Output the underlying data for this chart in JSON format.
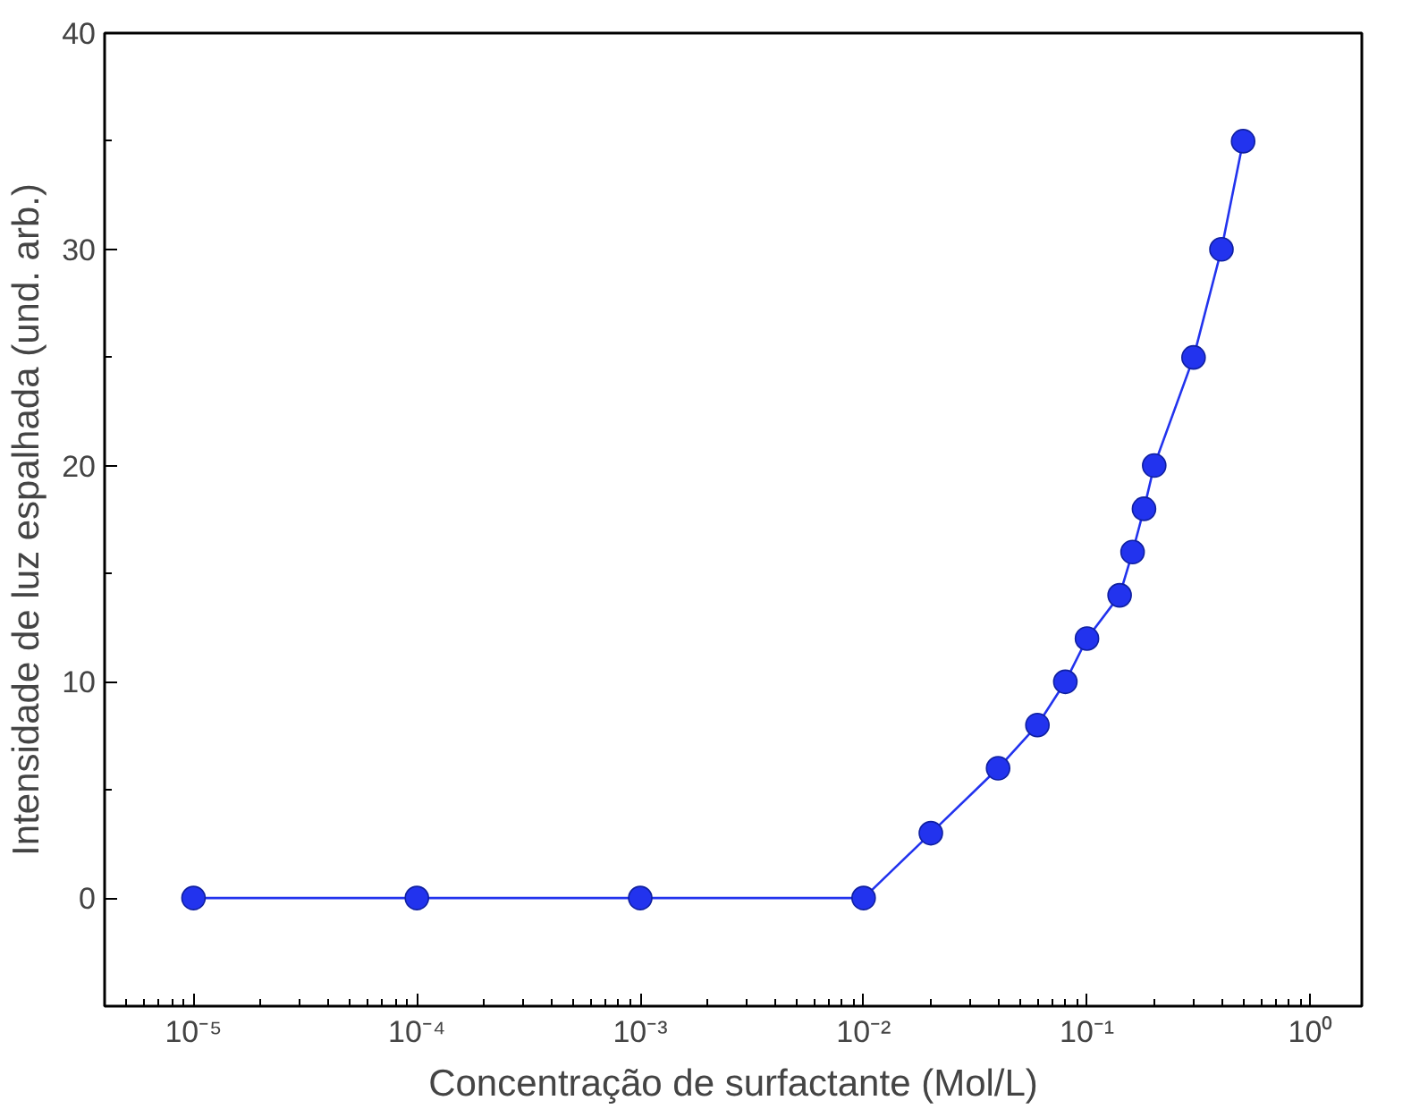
{
  "chart_data": {
    "type": "line",
    "xlabel": "Concentração de surfactante (Mol/L)",
    "ylabel": "Intensidade de luz espalhada (und. arb.)",
    "log": "x",
    "xlim": [
      4e-06,
      1.7
    ],
    "ylim": [
      -5,
      40
    ],
    "xticks": [
      {
        "value": 1e-05,
        "label": "10⁻⁵"
      },
      {
        "value": 0.0001,
        "label": "10⁻⁴"
      },
      {
        "value": 0.001,
        "label": "10⁻³"
      },
      {
        "value": 0.01,
        "label": "10⁻²"
      },
      {
        "value": 0.1,
        "label": "10⁻¹"
      },
      {
        "value": 1,
        "label": "10⁰"
      }
    ],
    "yticks": [
      0,
      10,
      20,
      30,
      40
    ],
    "grid": false,
    "marker": "circle",
    "line_style": "solid",
    "series": [
      {
        "color": "#2233ee",
        "x": [
          1e-05,
          0.0001,
          0.001,
          0.01,
          0.02,
          0.04,
          0.06,
          0.08,
          0.1,
          0.14,
          0.16,
          0.18,
          0.2,
          0.3,
          0.4,
          0.5
        ],
        "values": [
          0,
          0,
          0,
          0,
          3,
          6,
          8,
          10,
          12,
          14,
          16,
          18,
          20,
          25,
          30,
          35
        ]
      }
    ]
  }
}
